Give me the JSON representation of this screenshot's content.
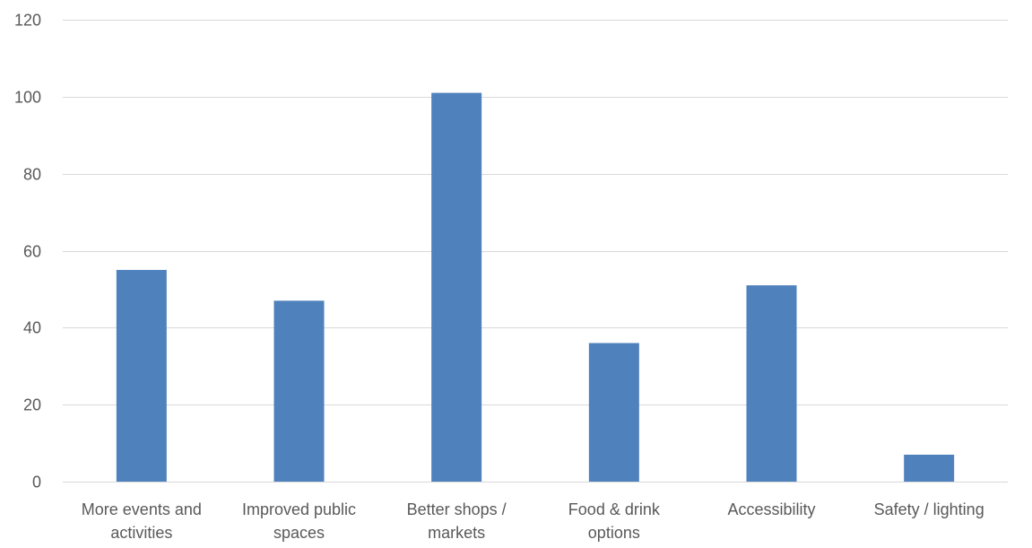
{
  "chart_data": {
    "type": "bar",
    "categories": [
      [
        "More events and",
        "activities"
      ],
      [
        "Improved public",
        "spaces"
      ],
      [
        "Better shops /",
        "markets"
      ],
      [
        "Food & drink",
        "options"
      ],
      [
        "Accessibility"
      ],
      [
        "Safety / lighting"
      ]
    ],
    "series": [
      {
        "values": [
          55,
          47,
          101,
          36,
          51,
          7
        ],
        "color": "#4f81bd"
      }
    ],
    "ylim": [
      0,
      120
    ],
    "yticks": [
      "0",
      "20",
      "40",
      "60",
      "80",
      "100",
      "120"
    ],
    "title": "",
    "xlabel": "",
    "ylabel": "",
    "grid": true,
    "legend": "none",
    "colors": {
      "bar": "#4f81bd",
      "grid": "#d9d9d9",
      "text": "#595959"
    }
  }
}
